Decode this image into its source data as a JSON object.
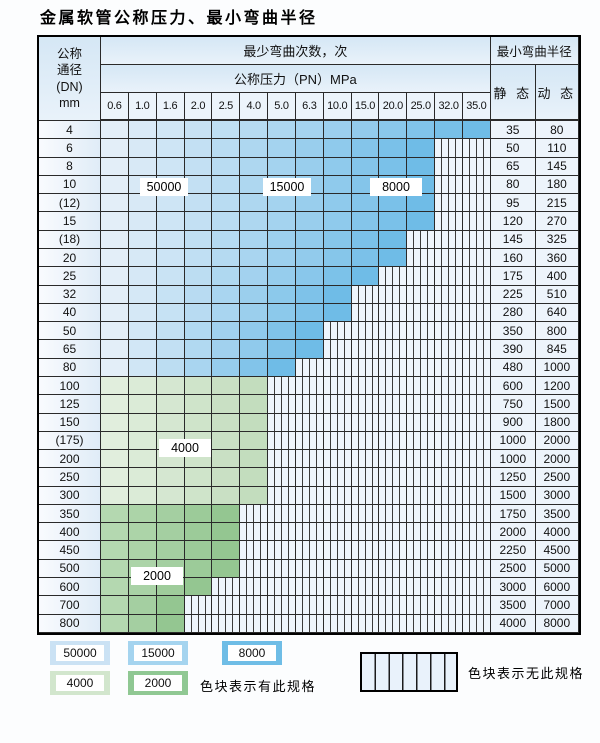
{
  "title": "金属软管公称压力、最小弯曲半径",
  "colors": {
    "regions": {
      "blue": [
        "#e3eef8",
        "#6fbce7"
      ],
      "green4": [
        "#e1eedd",
        "#c3ddbe"
      ],
      "green2": [
        "#b4d8b0",
        "#94c691"
      ]
    },
    "hatch_line": "#3b3b3b",
    "grid_line": "#2a2a2a",
    "header_bg": "#d5e7f5",
    "plain_cell_bg": "#edf4fb"
  },
  "table": {
    "header": {
      "dn_lines": [
        "公称",
        "通径",
        "(DN)",
        "mm"
      ],
      "bend_cycles_label": "最少弯曲次数，次",
      "pressure_label": "公称压力（PN）MPa",
      "pressure_columns": [
        "0.6",
        "1.0",
        "1.6",
        "2.0",
        "2.5",
        "4.0",
        "5.0",
        "6.3",
        "10.0",
        "15.0",
        "20.0",
        "25.0",
        "32.0",
        "35.0"
      ],
      "bend_radius_label": "最小弯曲半径",
      "static_label": "静 态",
      "dynamic_label": "动 态"
    },
    "rows": [
      {
        "dn": "4",
        "span": 14,
        "region": "blue",
        "max_pn": "35.0",
        "static": "35",
        "dynamic": "80"
      },
      {
        "dn": "6",
        "span": 12,
        "region": "blue",
        "max_pn": "25.0",
        "static": "50",
        "dynamic": "110"
      },
      {
        "dn": "8",
        "span": 12,
        "region": "blue",
        "max_pn": "25.0",
        "static": "65",
        "dynamic": "145"
      },
      {
        "dn": "10",
        "span": 12,
        "region": "blue",
        "max_pn": "25.0",
        "static": "80",
        "dynamic": "180"
      },
      {
        "dn": "(12)",
        "span": 12,
        "region": "blue",
        "max_pn": "25.0",
        "static": "95",
        "dynamic": "215"
      },
      {
        "dn": "15",
        "span": 12,
        "region": "blue",
        "max_pn": "25.0",
        "static": "120",
        "dynamic": "270"
      },
      {
        "dn": "(18)",
        "span": 11,
        "region": "blue",
        "max_pn": "20.0",
        "static": "145",
        "dynamic": "325"
      },
      {
        "dn": "20",
        "span": 11,
        "region": "blue",
        "max_pn": "20.0",
        "static": "160",
        "dynamic": "360"
      },
      {
        "dn": "25",
        "span": 10,
        "region": "blue",
        "max_pn": "15.0",
        "static": "175",
        "dynamic": "400"
      },
      {
        "dn": "32",
        "span": 9,
        "region": "blue",
        "max_pn": "10.0",
        "static": "225",
        "dynamic": "510"
      },
      {
        "dn": "40",
        "span": 9,
        "region": "blue",
        "max_pn": "10.0",
        "static": "280",
        "dynamic": "640"
      },
      {
        "dn": "50",
        "span": 8,
        "region": "blue",
        "max_pn": "6.3",
        "static": "350",
        "dynamic": "800"
      },
      {
        "dn": "65",
        "span": 8,
        "region": "blue",
        "max_pn": "6.3",
        "static": "390",
        "dynamic": "845"
      },
      {
        "dn": "80",
        "span": 7,
        "region": "blue",
        "max_pn": "5.0",
        "static": "480",
        "dynamic": "1000"
      },
      {
        "dn": "100",
        "span": 6,
        "region": "green4",
        "max_pn": "4.0",
        "static": "600",
        "dynamic": "1200"
      },
      {
        "dn": "125",
        "span": 6,
        "region": "green4",
        "max_pn": "4.0",
        "static": "750",
        "dynamic": "1500"
      },
      {
        "dn": "150",
        "span": 6,
        "region": "green4",
        "max_pn": "4.0",
        "static": "900",
        "dynamic": "1800"
      },
      {
        "dn": "(175)",
        "span": 6,
        "region": "green4",
        "max_pn": "4.0",
        "static": "1000",
        "dynamic": "2000"
      },
      {
        "dn": "200",
        "span": 6,
        "region": "green4",
        "max_pn": "4.0",
        "static": "1000",
        "dynamic": "2000"
      },
      {
        "dn": "250",
        "span": 6,
        "region": "green4",
        "max_pn": "4.0",
        "static": "1250",
        "dynamic": "2500"
      },
      {
        "dn": "300",
        "span": 6,
        "region": "green4",
        "max_pn": "4.0",
        "static": "1500",
        "dynamic": "3000"
      },
      {
        "dn": "350",
        "span": 5,
        "region": "green2",
        "max_pn": "2.5",
        "static": "1750",
        "dynamic": "3500"
      },
      {
        "dn": "400",
        "span": 5,
        "region": "green2",
        "max_pn": "2.5",
        "static": "2000",
        "dynamic": "4000"
      },
      {
        "dn": "450",
        "span": 5,
        "region": "green2",
        "max_pn": "2.5",
        "static": "2250",
        "dynamic": "4500"
      },
      {
        "dn": "500",
        "span": 5,
        "region": "green2",
        "max_pn": "2.5",
        "static": "2500",
        "dynamic": "5000"
      },
      {
        "dn": "600",
        "span": 4,
        "region": "green2",
        "max_pn": "2.0",
        "static": "3000",
        "dynamic": "6000"
      },
      {
        "dn": "700",
        "span": 3,
        "region": "green2",
        "max_pn": "1.6",
        "static": "3500",
        "dynamic": "7000"
      },
      {
        "dn": "800",
        "span": 3,
        "region": "green2",
        "max_pn": "1.6",
        "static": "4000",
        "dynamic": "8000"
      }
    ]
  },
  "region_labels": [
    {
      "text": "50000"
    },
    {
      "text": "15000"
    },
    {
      "text": "8000"
    },
    {
      "text": "4000"
    },
    {
      "text": "2000"
    }
  ],
  "legend": {
    "swatches": [
      {
        "label": "50000",
        "color": "#cbe2f4"
      },
      {
        "label": "15000",
        "color": "#a5d4ef"
      },
      {
        "label": "8000",
        "color": "#6fbde6"
      },
      {
        "label": "4000",
        "color": "#d2e6cd"
      },
      {
        "label": "2000",
        "color": "#90c893"
      }
    ],
    "has_spec_text": "色块表示有此规格",
    "no_spec_text": "色块表示无此规格"
  }
}
